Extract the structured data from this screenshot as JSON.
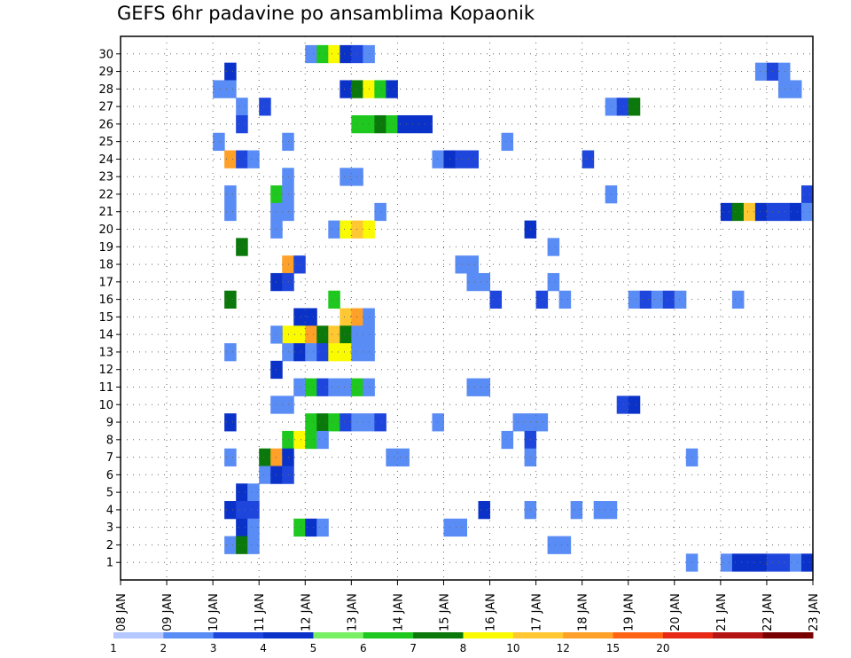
{
  "chart_data": {
    "type": "heatmap",
    "title": "GEFS 6hr padavine po ansamblima Kopaonik",
    "xlabel": "",
    "ylabel": "",
    "x_ticks": [
      "08 JAN",
      "09 JAN",
      "10 JAN",
      "11 JAN",
      "12 JAN",
      "13 JAN",
      "14 JAN",
      "15 JAN",
      "16 JAN",
      "17 JAN",
      "18 JAN",
      "19 JAN",
      "20 JAN",
      "21 JAN",
      "22 JAN",
      "23 JAN"
    ],
    "y_ticks": [
      "1",
      "2",
      "3",
      "4",
      "5",
      "6",
      "7",
      "8",
      "9",
      "10",
      "11",
      "12",
      "13",
      "14",
      "15",
      "16",
      "17",
      "18",
      "19",
      "20",
      "21",
      "22",
      "23",
      "24",
      "25",
      "26",
      "27",
      "28",
      "29",
      "30"
    ],
    "xlim": [
      0,
      60
    ],
    "ylim": [
      0,
      31
    ],
    "grid": true,
    "legend": "bottom",
    "colorbar_labels": [
      "1",
      "2",
      "3",
      "4",
      "5",
      "6",
      "7",
      "8",
      "10",
      "12",
      "15",
      "20"
    ],
    "colorbar_colors": [
      "#b4c8ff",
      "#5a8cf5",
      "#1e46dc",
      "#0a32c8",
      "#78f064",
      "#1ec81e",
      "#0a780a",
      "#fafa00",
      "#ffc832",
      "#ffa028",
      "#ff6414",
      "#e62814",
      "#b41414",
      "#780000"
    ],
    "cells": [
      [
        16,
        30,
        1
      ],
      [
        17,
        30,
        5
      ],
      [
        18,
        30,
        7
      ],
      [
        19,
        30,
        3
      ],
      [
        20,
        30,
        2
      ],
      [
        21,
        30,
        1
      ],
      [
        9,
        29,
        3
      ],
      [
        55,
        29,
        1
      ],
      [
        56,
        29,
        2
      ],
      [
        57,
        29,
        1
      ],
      [
        8,
        28,
        1
      ],
      [
        9,
        28,
        1
      ],
      [
        19,
        28,
        3
      ],
      [
        20,
        28,
        6
      ],
      [
        21,
        28,
        7
      ],
      [
        22,
        28,
        5
      ],
      [
        23,
        28,
        3
      ],
      [
        57,
        28,
        1
      ],
      [
        58,
        28,
        1
      ],
      [
        10,
        27,
        1
      ],
      [
        12,
        27,
        2
      ],
      [
        42,
        27,
        1
      ],
      [
        43,
        27,
        2
      ],
      [
        44,
        27,
        6
      ],
      [
        10,
        26,
        2
      ],
      [
        20,
        26,
        5
      ],
      [
        21,
        26,
        5
      ],
      [
        22,
        26,
        6
      ],
      [
        23,
        26,
        5
      ],
      [
        24,
        26,
        3
      ],
      [
        25,
        26,
        3
      ],
      [
        26,
        26,
        3
      ],
      [
        8,
        25,
        1
      ],
      [
        14,
        25,
        1
      ],
      [
        33,
        25,
        1
      ],
      [
        9,
        24,
        9
      ],
      [
        10,
        24,
        2
      ],
      [
        11,
        24,
        1
      ],
      [
        27,
        24,
        1
      ],
      [
        28,
        24,
        3
      ],
      [
        29,
        24,
        2
      ],
      [
        30,
        24,
        2
      ],
      [
        40,
        24,
        2
      ],
      [
        14,
        23,
        1
      ],
      [
        19,
        23,
        1
      ],
      [
        20,
        23,
        1
      ],
      [
        9,
        22,
        1
      ],
      [
        13,
        22,
        5
      ],
      [
        14,
        22,
        1
      ],
      [
        42,
        22,
        1
      ],
      [
        59,
        22,
        2
      ],
      [
        9,
        21,
        1
      ],
      [
        13,
        21,
        1
      ],
      [
        14,
        21,
        1
      ],
      [
        22,
        21,
        1
      ],
      [
        52,
        21,
        3
      ],
      [
        53,
        21,
        6
      ],
      [
        54,
        21,
        8
      ],
      [
        55,
        21,
        3
      ],
      [
        56,
        21,
        2
      ],
      [
        57,
        21,
        2
      ],
      [
        58,
        21,
        3
      ],
      [
        59,
        21,
        1
      ],
      [
        13,
        20,
        1
      ],
      [
        18,
        20,
        1
      ],
      [
        19,
        20,
        7
      ],
      [
        20,
        20,
        8
      ],
      [
        21,
        20,
        7
      ],
      [
        35,
        20,
        3
      ],
      [
        10,
        19,
        6
      ],
      [
        37,
        19,
        1
      ],
      [
        14,
        18,
        9
      ],
      [
        15,
        18,
        2
      ],
      [
        29,
        18,
        1
      ],
      [
        30,
        18,
        1
      ],
      [
        13,
        17,
        3
      ],
      [
        14,
        17,
        2
      ],
      [
        30,
        17,
        1
      ],
      [
        31,
        17,
        1
      ],
      [
        37,
        17,
        1
      ],
      [
        9,
        16,
        6
      ],
      [
        18,
        16,
        5
      ],
      [
        32,
        16,
        2
      ],
      [
        36,
        16,
        2
      ],
      [
        38,
        16,
        1
      ],
      [
        44,
        16,
        1
      ],
      [
        45,
        16,
        2
      ],
      [
        46,
        16,
        1
      ],
      [
        47,
        16,
        2
      ],
      [
        48,
        16,
        1
      ],
      [
        53,
        16,
        1
      ],
      [
        15,
        15,
        3
      ],
      [
        16,
        15,
        3
      ],
      [
        19,
        15,
        8
      ],
      [
        20,
        15,
        9
      ],
      [
        21,
        15,
        1
      ],
      [
        14,
        14,
        7
      ],
      [
        15,
        14,
        7
      ],
      [
        16,
        14,
        9
      ],
      [
        17,
        14,
        6
      ],
      [
        18,
        14,
        8
      ],
      [
        19,
        14,
        6
      ],
      [
        20,
        14,
        1
      ],
      [
        21,
        14,
        1
      ],
      [
        13,
        14,
        1
      ],
      [
        14,
        13,
        1
      ],
      [
        15,
        13,
        3
      ],
      [
        16,
        13,
        1
      ],
      [
        17,
        13,
        2
      ],
      [
        18,
        13,
        7
      ],
      [
        19,
        13,
        7
      ],
      [
        20,
        13,
        1
      ],
      [
        21,
        13,
        1
      ],
      [
        9,
        13,
        1
      ],
      [
        13,
        12,
        3
      ],
      [
        15,
        11,
        1
      ],
      [
        16,
        11,
        5
      ],
      [
        17,
        11,
        2
      ],
      [
        18,
        11,
        1
      ],
      [
        19,
        11,
        1
      ],
      [
        20,
        11,
        5
      ],
      [
        21,
        11,
        1
      ],
      [
        30,
        11,
        1
      ],
      [
        31,
        11,
        1
      ],
      [
        13,
        10,
        1
      ],
      [
        14,
        10,
        1
      ],
      [
        43,
        10,
        2
      ],
      [
        44,
        10,
        3
      ],
      [
        9,
        9,
        3
      ],
      [
        16,
        9,
        5
      ],
      [
        17,
        9,
        6
      ],
      [
        18,
        9,
        5
      ],
      [
        19,
        9,
        2
      ],
      [
        20,
        9,
        1
      ],
      [
        21,
        9,
        1
      ],
      [
        22,
        9,
        2
      ],
      [
        27,
        9,
        1
      ],
      [
        34,
        9,
        1
      ],
      [
        35,
        9,
        1
      ],
      [
        36,
        9,
        1
      ],
      [
        14,
        8,
        5
      ],
      [
        15,
        8,
        7
      ],
      [
        16,
        8,
        5
      ],
      [
        17,
        8,
        1
      ],
      [
        33,
        8,
        1
      ],
      [
        35,
        8,
        2
      ],
      [
        9,
        7,
        1
      ],
      [
        12,
        7,
        6
      ],
      [
        13,
        7,
        9
      ],
      [
        14,
        7,
        3
      ],
      [
        23,
        7,
        1
      ],
      [
        24,
        7,
        1
      ],
      [
        35,
        7,
        1
      ],
      [
        49,
        7,
        1
      ],
      [
        12,
        6,
        1
      ],
      [
        13,
        6,
        3
      ],
      [
        14,
        6,
        2
      ],
      [
        10,
        5,
        3
      ],
      [
        11,
        5,
        1
      ],
      [
        9,
        4,
        3
      ],
      [
        10,
        4,
        2
      ],
      [
        11,
        4,
        2
      ],
      [
        31,
        4,
        3
      ],
      [
        35,
        4,
        1
      ],
      [
        39,
        4,
        1
      ],
      [
        41,
        4,
        1
      ],
      [
        42,
        4,
        1
      ],
      [
        10,
        3,
        3
      ],
      [
        11,
        3,
        1
      ],
      [
        15,
        3,
        5
      ],
      [
        16,
        3,
        3
      ],
      [
        17,
        3,
        1
      ],
      [
        28,
        3,
        1
      ],
      [
        29,
        3,
        1
      ],
      [
        9,
        2,
        1
      ],
      [
        10,
        2,
        6
      ],
      [
        11,
        2,
        1
      ],
      [
        37,
        2,
        1
      ],
      [
        38,
        2,
        1
      ],
      [
        49,
        1,
        1
      ],
      [
        52,
        1,
        1
      ],
      [
        53,
        1,
        3
      ],
      [
        54,
        1,
        3
      ],
      [
        55,
        1,
        3
      ],
      [
        56,
        1,
        2
      ],
      [
        57,
        1,
        2
      ],
      [
        58,
        1,
        1
      ],
      [
        59,
        1,
        3
      ]
    ]
  }
}
